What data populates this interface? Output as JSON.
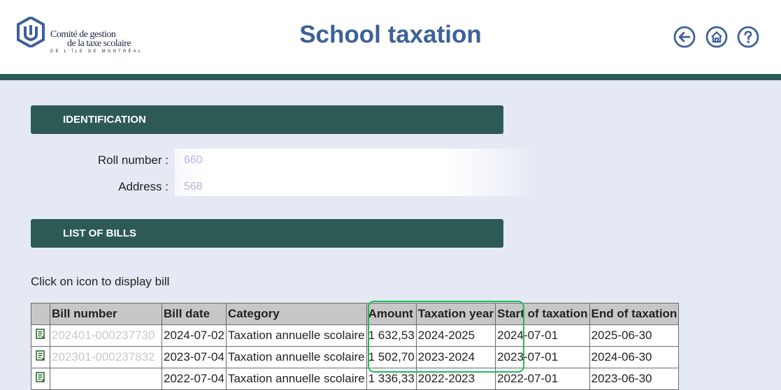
{
  "header": {
    "logo": {
      "line1": "Comité de gestion",
      "line2": "de la taxe scolaire",
      "line3": "DE L'ÎLE DE MONTRÉAL"
    },
    "title": "School taxation",
    "nav": {
      "back_icon": "back-arrow-icon",
      "home_icon": "home-icon",
      "help_icon": "help-icon"
    }
  },
  "colors": {
    "title": "#3d6198",
    "section_bar": "#2e5a56",
    "background": "#e4e9f3",
    "highlight": "#1fba5d"
  },
  "identification": {
    "heading": "IDENTIFICATION",
    "roll_label": "Roll number :",
    "roll_value": "660",
    "address_label": "Address :",
    "address_value": "568"
  },
  "bills": {
    "heading": "LIST OF BILLS",
    "hint": "Click on icon to display bill",
    "columns": [
      "Bill number",
      "Bill date",
      "Category",
      "Amount",
      "Taxation year",
      "Start of taxation",
      "End of taxation"
    ],
    "rows": [
      {
        "bill_number": "202401-000237730",
        "bill_date": "2024-07-02",
        "category": "Taxation annuelle scolaire",
        "amount": "1 632,53",
        "taxation_year": "2024-2025",
        "start": "2024-07-01",
        "end": "2025-06-30"
      },
      {
        "bill_number": "202301-000237832",
        "bill_date": "2023-07-04",
        "category": "Taxation annuelle scolaire",
        "amount": "1 502,70",
        "taxation_year": "2023-2024",
        "start": "2023-07-01",
        "end": "2024-06-30"
      },
      {
        "bill_number": "",
        "bill_date": "2022-07-04",
        "category": "Taxation annuelle scolaire",
        "amount": "1 336,33",
        "taxation_year": "2022-2023",
        "start": "2022-07-01",
        "end": "2023-06-30"
      }
    ]
  }
}
